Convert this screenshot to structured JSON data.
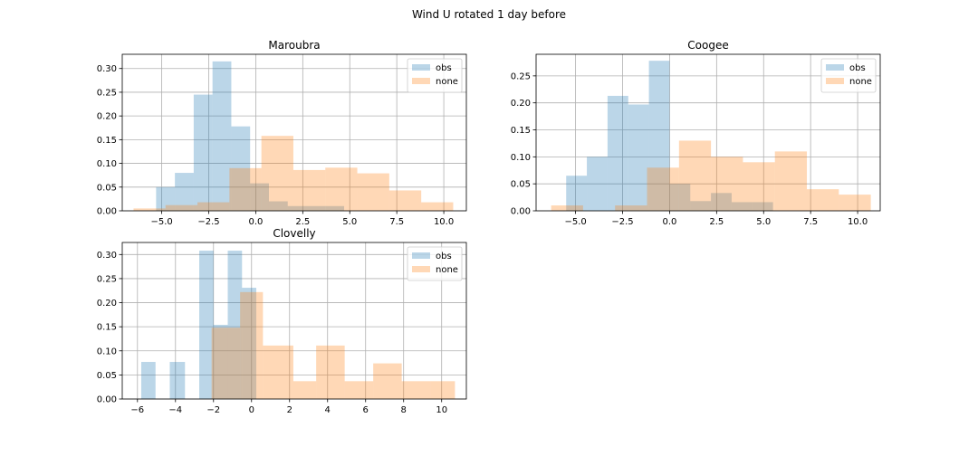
{
  "figure": {
    "title": "Wind U rotated 1 day before"
  },
  "colors": {
    "obs": "#1f77b4",
    "none": "#ff7f0e",
    "grid": "#b0b0b0"
  },
  "chart_data": [
    {
      "type": "histogram",
      "title": "Maroubra",
      "xlabel": "",
      "ylabel": "",
      "xlim": [
        -7.1,
        11.2
      ],
      "ylim": [
        0,
        0.33
      ],
      "xticks": [
        -5.0,
        -2.5,
        0.0,
        2.5,
        5.0,
        7.5,
        10.0
      ],
      "xtick_labels": [
        "−5.0",
        "−2.5",
        "0.0",
        "2.5",
        "5.0",
        "7.5",
        "10.0"
      ],
      "yticks": [
        0.0,
        0.05,
        0.1,
        0.15,
        0.2,
        0.25,
        0.3
      ],
      "ytick_labels": [
        "0.00",
        "0.05",
        "0.10",
        "0.15",
        "0.20",
        "0.25",
        "0.30"
      ],
      "grid": true,
      "legend_position": "top-right",
      "series": [
        {
          "name": "obs",
          "key": "obs",
          "alpha": 0.3,
          "bins": [
            [
              -5.3,
              -4.3
            ],
            [
              -4.3,
              -3.3
            ],
            [
              -3.3,
              -2.3
            ],
            [
              -2.3,
              -1.3
            ],
            [
              -1.3,
              -0.3
            ],
            [
              -0.3,
              0.7
            ],
            [
              0.7,
              1.7
            ],
            [
              1.7,
              2.7
            ],
            [
              2.7,
              3.7
            ],
            [
              3.7,
              4.7
            ],
            [
              4.7,
              5.7
            ]
          ],
          "values": [
            0.05,
            0.08,
            0.245,
            0.315,
            0.178,
            0.058,
            0.02,
            0.01,
            0.01,
            0.01,
            0.0
          ]
        },
        {
          "name": "none",
          "key": "none",
          "alpha": 0.3,
          "bins": [
            [
              -6.5,
              -4.8
            ],
            [
              -4.8,
              -3.1
            ],
            [
              -3.1,
              -1.4
            ],
            [
              -1.4,
              0.3
            ],
            [
              0.3,
              2.0
            ],
            [
              2.0,
              3.7
            ],
            [
              3.7,
              5.4
            ],
            [
              5.4,
              7.1
            ],
            [
              7.1,
              8.8
            ],
            [
              8.8,
              10.5
            ]
          ],
          "values": [
            0.005,
            0.012,
            0.018,
            0.09,
            0.158,
            0.086,
            0.091,
            0.079,
            0.043,
            0.018
          ]
        }
      ]
    },
    {
      "type": "histogram",
      "title": "Coogee",
      "xlabel": "",
      "ylabel": "",
      "xlim": [
        -7.1,
        11.2
      ],
      "ylim": [
        0,
        0.29
      ],
      "xticks": [
        -5.0,
        -2.5,
        0.0,
        2.5,
        5.0,
        7.5,
        10.0
      ],
      "xtick_labels": [
        "−5.0",
        "−2.5",
        "0.0",
        "2.5",
        "5.0",
        "7.5",
        "10.0"
      ],
      "yticks": [
        0.0,
        0.05,
        0.1,
        0.15,
        0.2,
        0.25
      ],
      "ytick_labels": [
        "0.00",
        "0.05",
        "0.10",
        "0.15",
        "0.20",
        "0.25"
      ],
      "grid": true,
      "legend_position": "top-right",
      "series": [
        {
          "name": "obs",
          "key": "obs",
          "alpha": 0.3,
          "bins": [
            [
              -5.5,
              -4.4
            ],
            [
              -4.4,
              -3.3
            ],
            [
              -3.3,
              -2.2
            ],
            [
              -2.2,
              -1.1
            ],
            [
              -1.1,
              0.0
            ],
            [
              0.0,
              1.1
            ],
            [
              1.1,
              2.2
            ],
            [
              2.2,
              3.3
            ],
            [
              3.3,
              4.4
            ],
            [
              4.4,
              5.5
            ]
          ],
          "values": [
            0.065,
            0.1,
            0.213,
            0.197,
            0.278,
            0.05,
            0.018,
            0.033,
            0.016,
            0.016
          ]
        },
        {
          "name": "none",
          "key": "none",
          "alpha": 0.3,
          "bins": [
            [
              -6.3,
              -4.6
            ],
            [
              -4.6,
              -2.9
            ],
            [
              -2.9,
              -1.2
            ],
            [
              -1.2,
              0.5
            ],
            [
              0.5,
              2.2
            ],
            [
              2.2,
              3.9
            ],
            [
              3.9,
              5.6
            ],
            [
              5.6,
              7.3
            ],
            [
              7.3,
              9.0
            ],
            [
              9.0,
              10.7
            ]
          ],
          "values": [
            0.01,
            0.0,
            0.01,
            0.08,
            0.13,
            0.1,
            0.09,
            0.11,
            0.04,
            0.03
          ]
        }
      ]
    },
    {
      "type": "histogram",
      "title": "Clovelly",
      "xlabel": "",
      "ylabel": "",
      "xlim": [
        -6.8,
        11.3
      ],
      "ylim": [
        0,
        0.325
      ],
      "xticks": [
        -6,
        -4,
        -2,
        0,
        2,
        4,
        6,
        8,
        10
      ],
      "xtick_labels": [
        "−6",
        "−4",
        "−2",
        "0",
        "2",
        "4",
        "6",
        "8",
        "10"
      ],
      "yticks": [
        0.0,
        0.05,
        0.1,
        0.15,
        0.2,
        0.25,
        0.3
      ],
      "ytick_labels": [
        "0.00",
        "0.05",
        "0.10",
        "0.15",
        "0.20",
        "0.25",
        "0.30"
      ],
      "grid": true,
      "legend_position": "top-right",
      "series": [
        {
          "name": "obs",
          "key": "obs",
          "alpha": 0.3,
          "bins": [
            [
              -5.8,
              -5.05
            ],
            [
              -5.05,
              -4.3
            ],
            [
              -4.3,
              -3.5
            ],
            [
              -3.5,
              -2.75
            ],
            [
              -2.75,
              -2.0
            ],
            [
              -2.0,
              -1.25
            ],
            [
              -1.25,
              -0.5
            ],
            [
              -0.5,
              0.25
            ]
          ],
          "values": [
            0.077,
            0.0,
            0.077,
            0.0,
            0.308,
            0.154,
            0.308,
            0.231
          ]
        },
        {
          "name": "none",
          "key": "none",
          "alpha": 0.3,
          "bins": [
            [
              -2.1,
              -0.6
            ],
            [
              -0.6,
              0.6
            ],
            [
              0.6,
              2.2
            ],
            [
              2.2,
              3.4
            ],
            [
              3.4,
              4.9
            ],
            [
              4.9,
              6.4
            ],
            [
              6.4,
              7.9
            ],
            [
              7.9,
              9.4
            ],
            [
              9.4,
              10.7
            ]
          ],
          "values": [
            0.148,
            0.222,
            0.111,
            0.037,
            0.111,
            0.037,
            0.074,
            0.037,
            0.037
          ]
        }
      ]
    }
  ]
}
